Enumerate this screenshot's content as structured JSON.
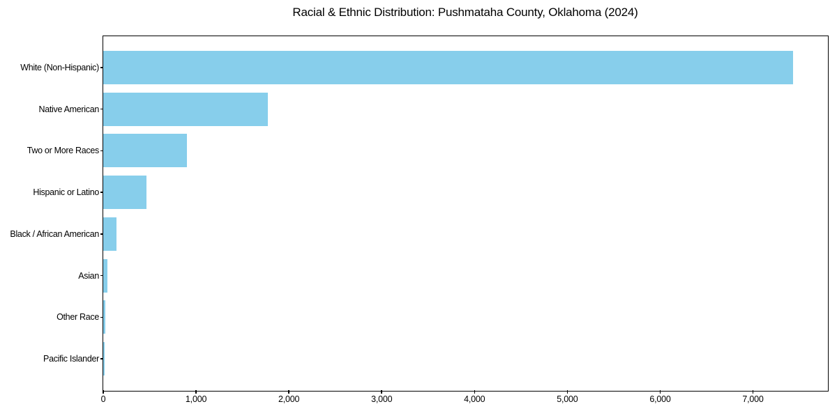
{
  "chart_data": {
    "type": "bar",
    "orientation": "horizontal",
    "title": "Racial & Ethnic Distribution: Pushmataha County, Oklahoma (2024)",
    "categories": [
      "White (Non-Hispanic)",
      "Native American",
      "Two or More Races",
      "Hispanic or Latino",
      "Black / African American",
      "Asian",
      "Other Race",
      "Pacific Islander"
    ],
    "values": [
      7430,
      1775,
      900,
      465,
      140,
      45,
      20,
      15
    ],
    "xlabel": "",
    "ylabel": "",
    "xlim": [
      0,
      7800
    ],
    "x_ticks": [
      0,
      1000,
      2000,
      3000,
      4000,
      5000,
      6000,
      7000
    ],
    "x_tick_labels": [
      "0",
      "1,000",
      "2,000",
      "3,000",
      "4,000",
      "5,000",
      "6,000",
      "7,000"
    ],
    "bar_color": "#87CEEB",
    "background_color": "#ffffff",
    "spine_color": "#000000",
    "text_color": "#000000",
    "grid": false,
    "legend": null
  }
}
